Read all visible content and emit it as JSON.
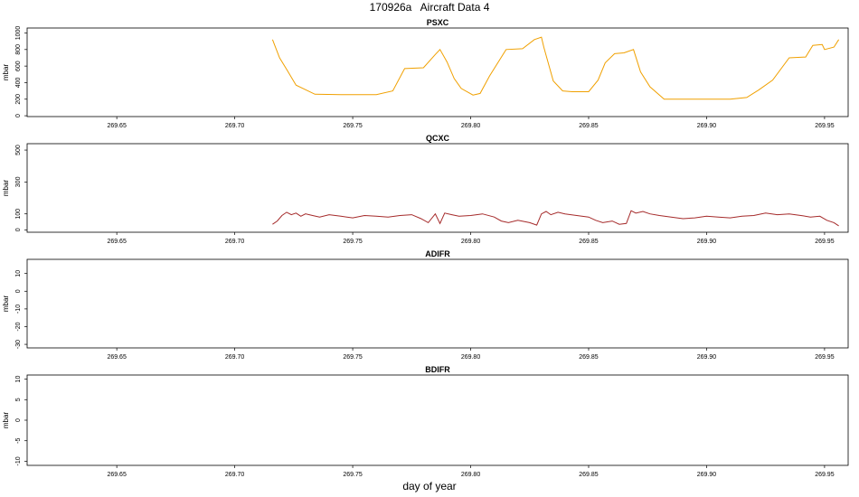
{
  "title": "170926a   Aircraft Data 4",
  "xlabel": "day of year",
  "chart_data": [
    {
      "type": "line",
      "title": "PSXC",
      "ylabel": "mbar",
      "color": "#f0a000",
      "xlim": [
        269.612,
        269.96
      ],
      "ylim": [
        -10,
        1060
      ],
      "xticks": [
        "269.65",
        "269.70",
        "269.75",
        "269.80",
        "269.85",
        "269.90",
        "269.95"
      ],
      "yticks": [
        "0",
        "200",
        "400",
        "600",
        "800",
        "1000"
      ],
      "series": [
        {
          "x": [
            269.716,
            269.719,
            269.722,
            269.726,
            269.734,
            269.745,
            269.76,
            269.767,
            269.772,
            269.78,
            269.785,
            269.787,
            269.79,
            269.793,
            269.796,
            269.801,
            269.804,
            269.808,
            269.815,
            269.822,
            269.827,
            269.83,
            269.831,
            269.835,
            269.839,
            269.843,
            269.85,
            269.854,
            269.857,
            269.861,
            269.865,
            269.869,
            269.872,
            269.876,
            269.882,
            269.896,
            269.91,
            269.917,
            269.922,
            269.928,
            269.935,
            269.942,
            269.945,
            269.949,
            269.95,
            269.954,
            269.956
          ],
          "y": [
            920,
            700,
            560,
            370,
            260,
            255,
            255,
            300,
            570,
            580,
            740,
            800,
            650,
            450,
            330,
            250,
            270,
            480,
            800,
            810,
            920,
            950,
            830,
            420,
            300,
            290,
            290,
            430,
            640,
            750,
            760,
            800,
            530,
            350,
            200,
            200,
            200,
            220,
            310,
            430,
            700,
            710,
            850,
            860,
            800,
            830,
            920
          ]
        }
      ]
    },
    {
      "type": "line",
      "title": "QCXC",
      "ylabel": "mbar",
      "color": "#a52a2a",
      "xlim": [
        269.612,
        269.96
      ],
      "ylim": [
        -15,
        540
      ],
      "xticks": [
        "269.65",
        "269.70",
        "269.75",
        "269.80",
        "269.85",
        "269.90",
        "269.95"
      ],
      "yticks": [
        "0",
        "100",
        "300",
        "500"
      ],
      "series": [
        {
          "x": [
            269.716,
            269.718,
            269.72,
            269.722,
            269.724,
            269.726,
            269.728,
            269.73,
            269.733,
            269.736,
            269.74,
            269.745,
            269.75,
            269.755,
            269.76,
            269.765,
            269.77,
            269.775,
            269.779,
            269.782,
            269.785,
            269.787,
            269.789,
            269.792,
            269.795,
            269.8,
            269.805,
            269.81,
            269.813,
            269.816,
            269.82,
            269.825,
            269.828,
            269.83,
            269.832,
            269.834,
            269.837,
            269.84,
            269.845,
            269.85,
            269.853,
            269.856,
            269.86,
            269.863,
            269.866,
            269.868,
            269.87,
            269.873,
            269.876,
            269.88,
            269.885,
            269.89,
            269.895,
            269.9,
            269.905,
            269.91,
            269.915,
            269.92,
            269.925,
            269.93,
            269.935,
            269.94,
            269.944,
            269.948,
            269.951,
            269.954,
            269.956
          ],
          "y": [
            35,
            55,
            90,
            110,
            95,
            105,
            85,
            100,
            90,
            80,
            95,
            85,
            75,
            90,
            85,
            80,
            90,
            95,
            70,
            45,
            100,
            40,
            105,
            95,
            85,
            90,
            100,
            80,
            55,
            45,
            60,
            45,
            30,
            100,
            115,
            95,
            110,
            100,
            90,
            80,
            60,
            45,
            55,
            35,
            40,
            120,
            105,
            115,
            100,
            90,
            80,
            70,
            75,
            85,
            80,
            75,
            85,
            90,
            105,
            95,
            100,
            90,
            80,
            85,
            60,
            45,
            25
          ]
        }
      ]
    },
    {
      "type": "line",
      "title": "ADIFR",
      "ylabel": "mbar",
      "xlim": [
        269.612,
        269.96
      ],
      "ylim": [
        -32,
        18
      ],
      "xticks": [
        "269.65",
        "269.70",
        "269.75",
        "269.80",
        "269.85",
        "269.90",
        "269.95"
      ],
      "yticks": [
        "-30",
        "-20",
        "-10",
        "0",
        "10"
      ],
      "series": []
    },
    {
      "type": "line",
      "title": "BDIFR",
      "ylabel": "mbar",
      "xlim": [
        269.612,
        269.96
      ],
      "ylim": [
        -11,
        11
      ],
      "xticks": [
        "269.65",
        "269.70",
        "269.75",
        "269.80",
        "269.85",
        "269.90",
        "269.95"
      ],
      "yticks": [
        "-10",
        "-5",
        "0",
        "5",
        "10"
      ],
      "series": []
    }
  ]
}
